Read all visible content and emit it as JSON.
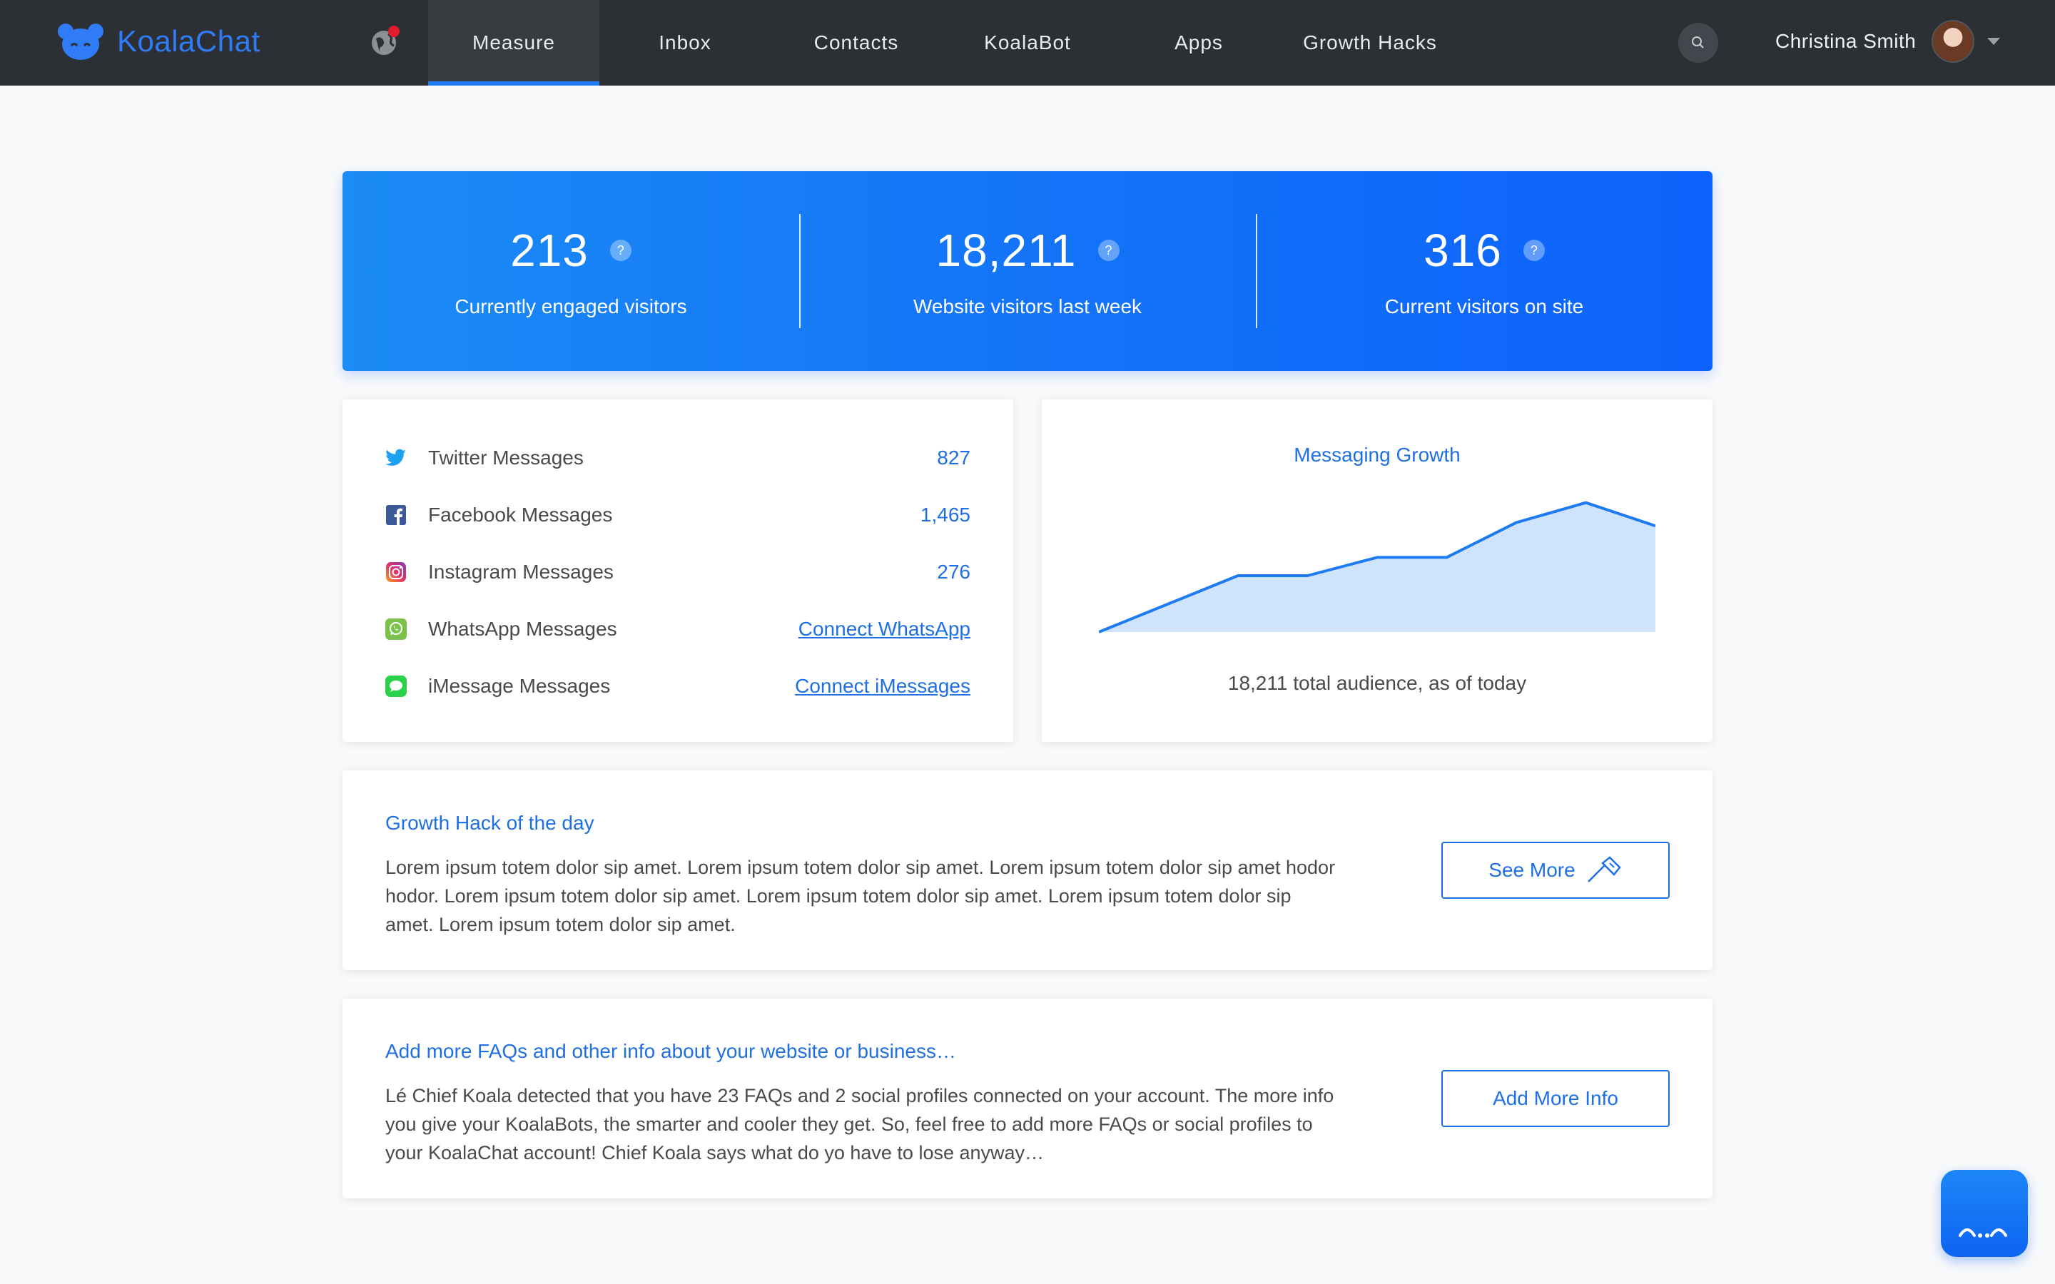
{
  "app": {
    "name": "KoalaChat"
  },
  "nav": {
    "items": [
      {
        "label": "Measure",
        "active": true
      },
      {
        "label": "Inbox",
        "active": false
      },
      {
        "label": "Contacts",
        "active": false
      },
      {
        "label": "KoalaBot",
        "active": false
      },
      {
        "label": "Apps",
        "active": false
      },
      {
        "label": "Growth Hacks",
        "active": false
      }
    ]
  },
  "user": {
    "name": "Christina Smith"
  },
  "stats": [
    {
      "value": "213",
      "label": "Currently engaged visitors",
      "help": "?"
    },
    {
      "value": "18,211",
      "label": "Website visitors last week",
      "help": "?"
    },
    {
      "value": "316",
      "label": "Current visitors on site",
      "help": "?"
    }
  ],
  "messages": [
    {
      "icon": "twitter-icon",
      "label": "Twitter Messages",
      "value": "827"
    },
    {
      "icon": "facebook-icon",
      "label": "Facebook Messages",
      "value": "1,465"
    },
    {
      "icon": "instagram-icon",
      "label": "Instagram Messages",
      "value": "276"
    },
    {
      "icon": "whatsapp-icon",
      "label": "WhatsApp Messages",
      "link": "Connect WhatsApp"
    },
    {
      "icon": "imessage-icon",
      "label": "iMessage Messages",
      "link": "Connect iMessages"
    }
  ],
  "growth": {
    "title": "Messaging Growth",
    "caption": "18,211 total audience, as of today"
  },
  "chart_data": {
    "type": "area",
    "title": "Messaging Growth",
    "x": [
      0,
      1,
      2,
      3,
      4,
      5,
      6,
      7,
      8
    ],
    "values": [
      0,
      17,
      34,
      34,
      45,
      45,
      66,
      78,
      64
    ],
    "ylim": [
      0,
      80
    ],
    "grid": false,
    "color": "#1e7bf2",
    "fill": "#cfe4fb"
  },
  "hack": {
    "title": "Growth Hack of the day",
    "body": "Lorem ipsum totem dolor sip amet. Lorem ipsum totem dolor sip amet. Lorem ipsum totem dolor sip amet hodor hodor. Lorem ipsum totem dolor sip amet. Lorem ipsum totem dolor sip amet. Lorem ipsum totem dolor sip amet. Lorem ipsum totem dolor sip amet.",
    "button": "See More"
  },
  "faq": {
    "title": "Add more FAQs and other info about your website or business…",
    "body": "Lé Chief Koala detected that you have 23 FAQs and 2 social profiles connected on your account. The more info you give your KoalaBots, the smarter and cooler they get. So, feel free to add more FAQs or social profiles to your KoalaChat account! Chief Koala says what do yo have to lose anyway…",
    "button": "Add More Info"
  },
  "colors": {
    "accent": "#1f6fe5",
    "topbar": "#2c2f33",
    "hero_start": "#1b8bf5",
    "hero_end": "#0d62fb"
  }
}
